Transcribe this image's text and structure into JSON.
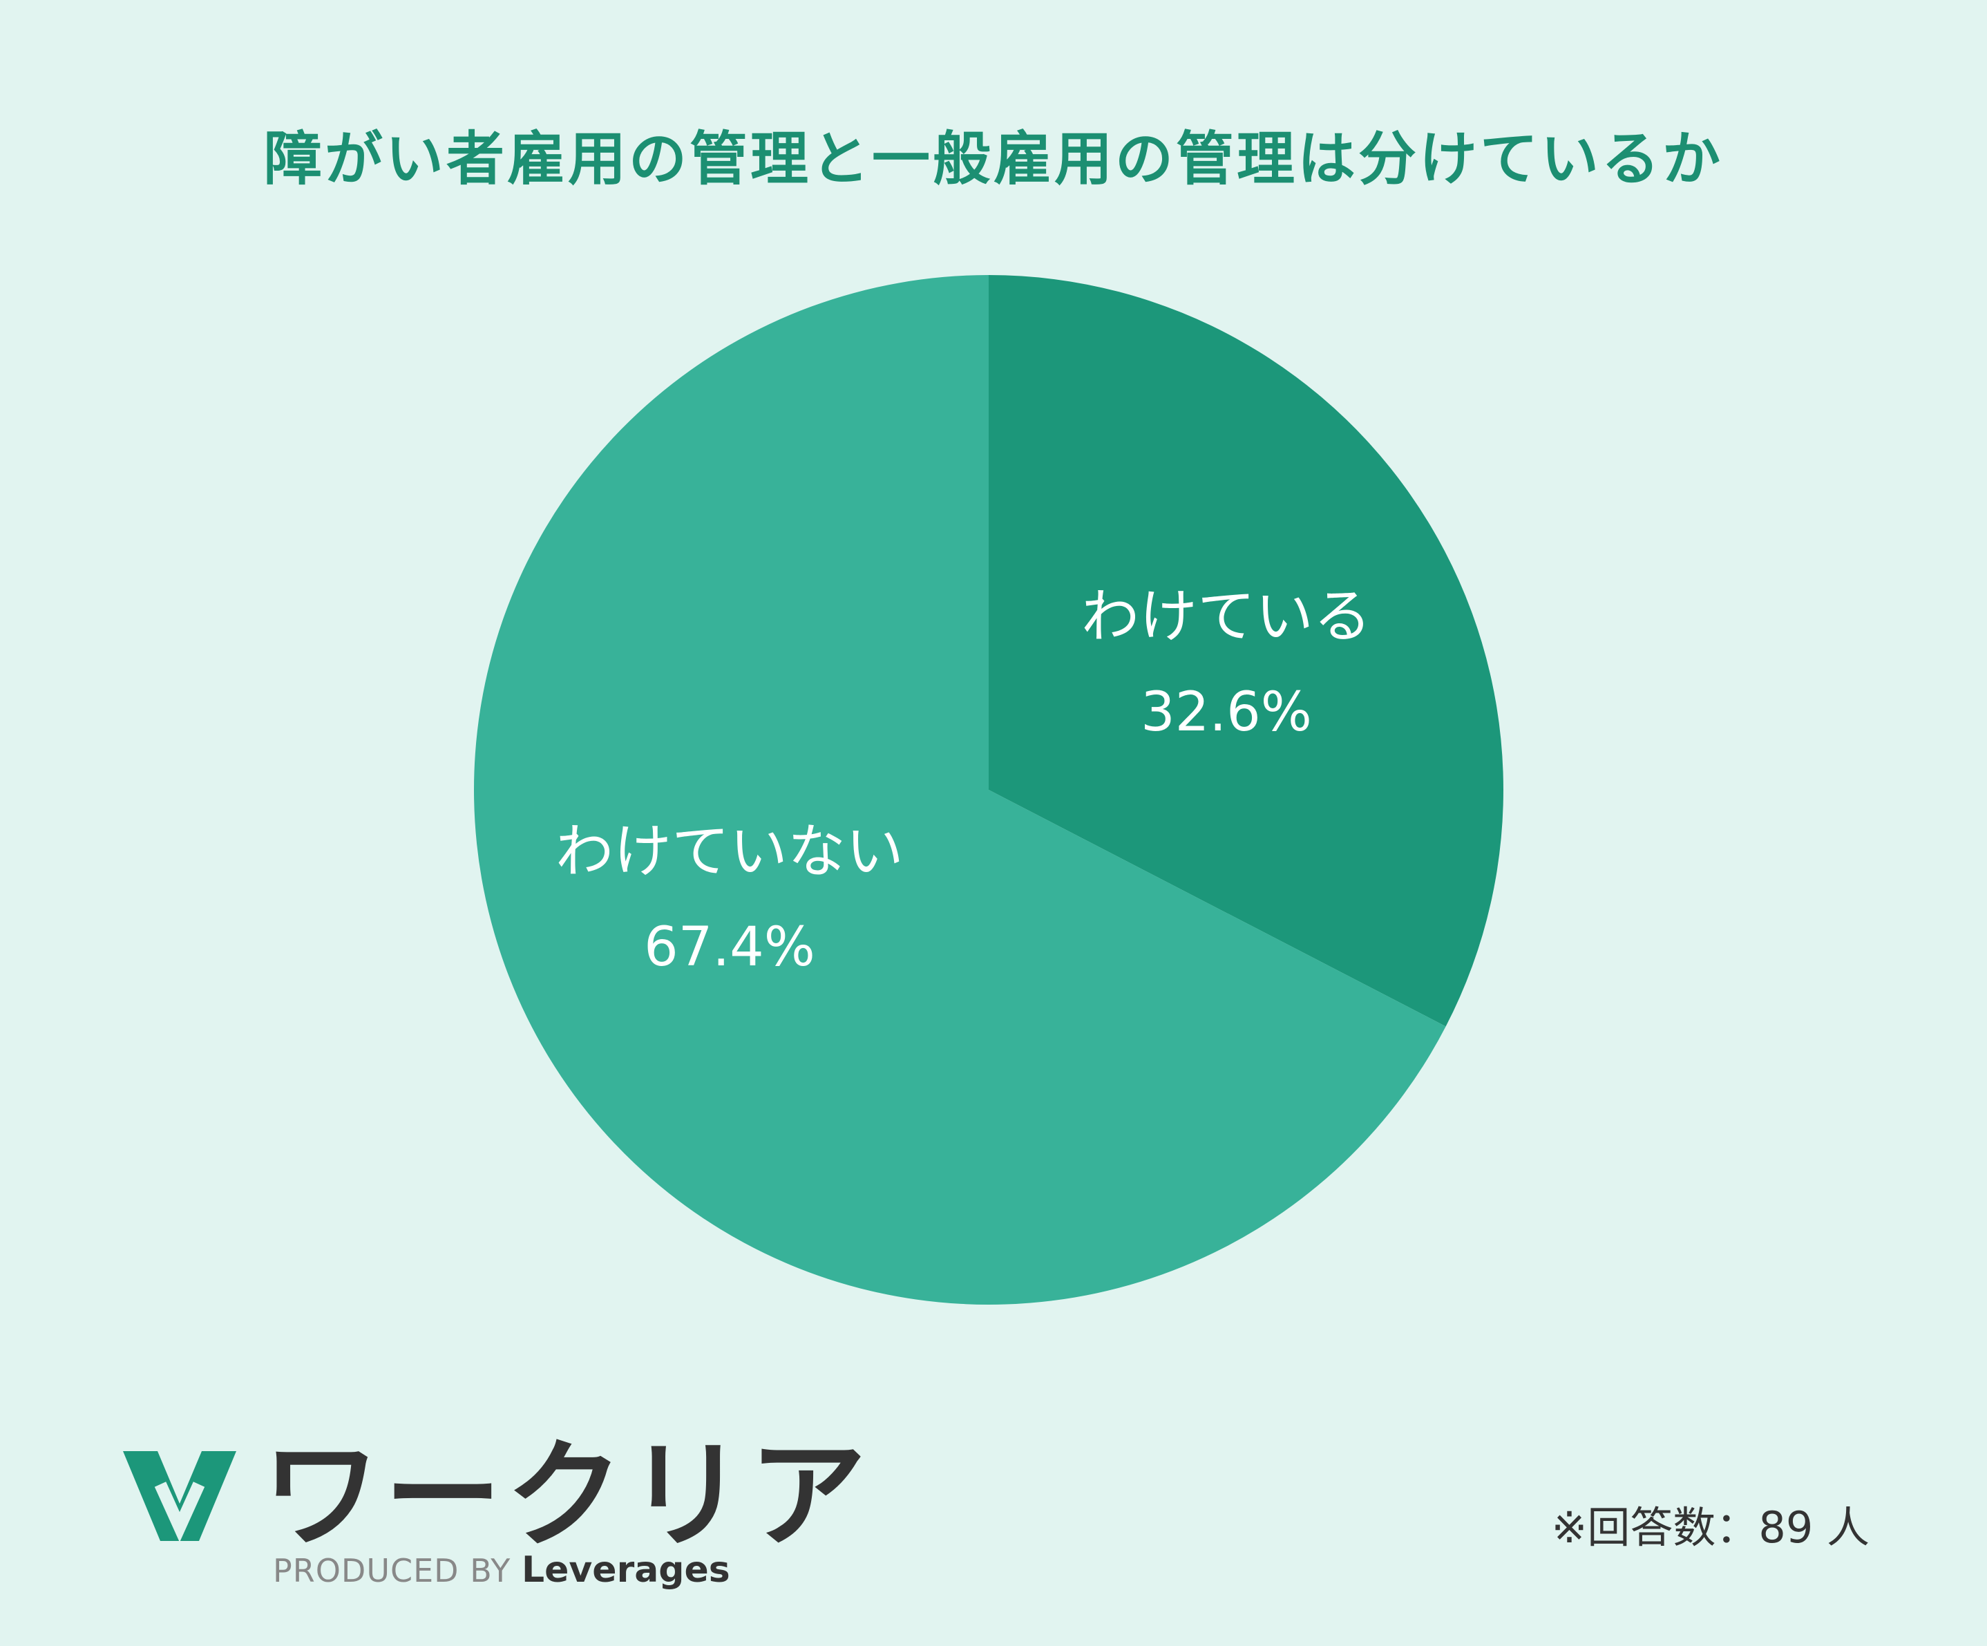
{
  "colors": {
    "background": "#e1f4f0",
    "accent": "#1c8f72",
    "slice_1": "#1c977a",
    "slice_2": "#38b299",
    "label": "#ffffff"
  },
  "chart_data": {
    "type": "pie",
    "title": "障がい者雇用の管理と一般雇用の管理は分けているか",
    "slices": [
      {
        "label": "わけている",
        "value": 32.6,
        "display": "32.6%",
        "color": "#1c977a"
      },
      {
        "label": "わけていない",
        "value": 67.4,
        "display": "67.4%",
        "color": "#38b299"
      }
    ],
    "start": "12 o'clock",
    "direction": "clockwise"
  },
  "footnote": "※回答数：89 人",
  "brand": {
    "name": "ワークリア",
    "produced_by": "PRODUCED BY",
    "company": "Leverages",
    "logo_icon": "w-mark-icon"
  }
}
